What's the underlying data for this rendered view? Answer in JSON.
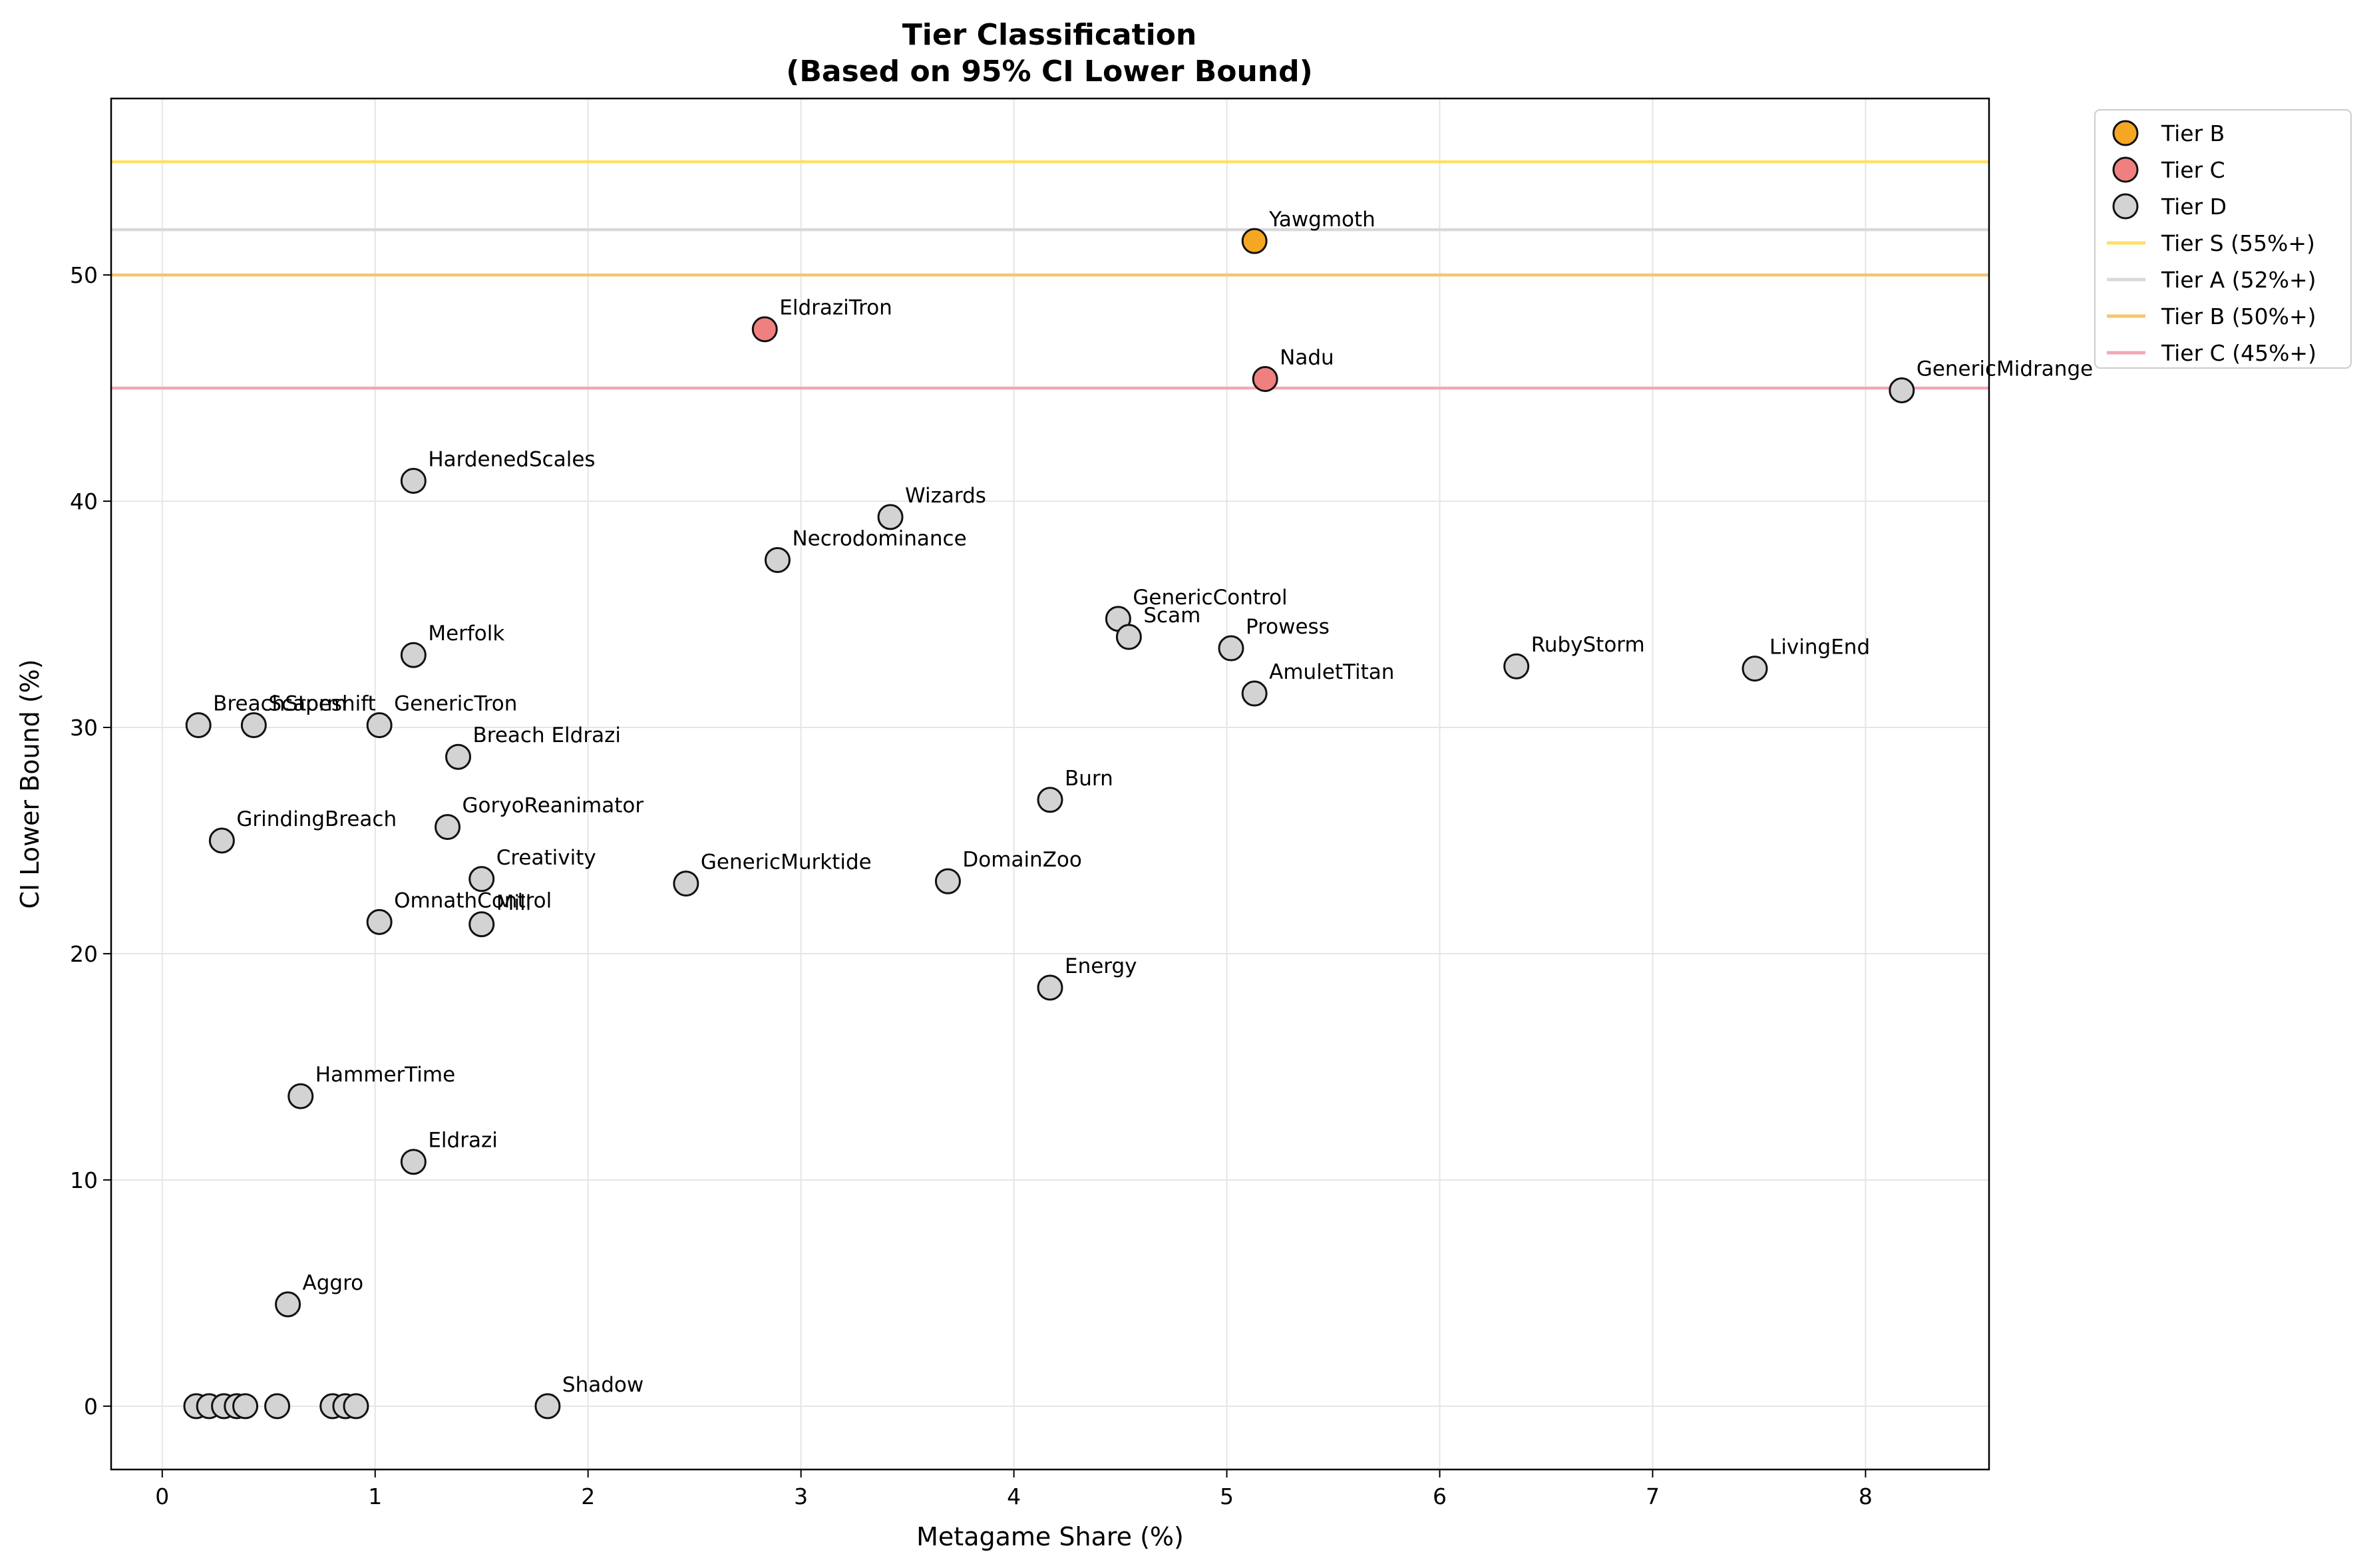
{
  "chart_data": {
    "type": "scatter",
    "title": "Tier Classification",
    "subtitle": "(Based on 95% CI Lower Bound)",
    "xlabel": "Metagame Share (%)",
    "ylabel": "CI Lower Bound (%)",
    "xlim": [
      -0.24,
      8.58
    ],
    "ylim": [
      -2.8,
      57.8
    ],
    "xticks": [
      0,
      1,
      2,
      3,
      4,
      5,
      6,
      7,
      8
    ],
    "yticks": [
      0,
      10,
      20,
      30,
      40,
      50
    ],
    "grid": true,
    "legend_position": "outside-top-right",
    "tier_colors": {
      "Tier B": "#f5a623",
      "Tier C": "#f08080",
      "Tier D": "#d3d3d3"
    },
    "reference_lines": [
      {
        "label": "Tier S (55%+)",
        "y": 55,
        "color": "#ffe066"
      },
      {
        "label": "Tier A (52%+)",
        "y": 52,
        "color": "#d9d9d9"
      },
      {
        "label": "Tier B (50%+)",
        "y": 50,
        "color": "#f7c56b"
      },
      {
        "label": "Tier C (45%+)",
        "y": 45,
        "color": "#f4a7b3"
      }
    ],
    "series": [
      {
        "name": "Tier B",
        "points": [
          {
            "label": "Yawgmoth",
            "x": 5.13,
            "y": 51.5
          }
        ]
      },
      {
        "name": "Tier C",
        "points": [
          {
            "label": "EldraziTron",
            "x": 2.83,
            "y": 47.6
          },
          {
            "label": "Nadu",
            "x": 5.18,
            "y": 45.4
          }
        ]
      },
      {
        "name": "Tier D",
        "points": [
          {
            "label": "GenericMidrange",
            "x": 8.17,
            "y": 44.9
          },
          {
            "label": "HardenedScales",
            "x": 1.18,
            "y": 40.9
          },
          {
            "label": "Wizards",
            "x": 3.42,
            "y": 39.3
          },
          {
            "label": "Necrodominance",
            "x": 2.89,
            "y": 37.4
          },
          {
            "label": "GenericControl",
            "x": 4.49,
            "y": 34.8
          },
          {
            "label": "Scam",
            "x": 4.54,
            "y": 34.0
          },
          {
            "label": "Prowess",
            "x": 5.02,
            "y": 33.5
          },
          {
            "label": "Merfolk",
            "x": 1.18,
            "y": 33.2
          },
          {
            "label": "RubyStorm",
            "x": 6.36,
            "y": 32.7
          },
          {
            "label": "LivingEnd",
            "x": 7.48,
            "y": 32.6
          },
          {
            "label": "AmuletTitan",
            "x": 5.13,
            "y": 31.5
          },
          {
            "label": "BreachStorm",
            "x": 0.17,
            "y": 30.1
          },
          {
            "label": "Scapeshift",
            "x": 0.43,
            "y": 30.1
          },
          {
            "label": "GenericTron",
            "x": 1.02,
            "y": 30.1
          },
          {
            "label": "Breach Eldrazi",
            "x": 1.39,
            "y": 28.7
          },
          {
            "label": "Burn",
            "x": 4.17,
            "y": 26.8
          },
          {
            "label": "GoryoReanimator",
            "x": 1.34,
            "y": 25.6
          },
          {
            "label": "GrindingBreach",
            "x": 0.28,
            "y": 25.0
          },
          {
            "label": "Creativity",
            "x": 1.5,
            "y": 23.3
          },
          {
            "label": "DomainZoo",
            "x": 3.69,
            "y": 23.2
          },
          {
            "label": "GenericMurktide",
            "x": 2.46,
            "y": 23.1
          },
          {
            "label": "OmnathControl",
            "x": 1.02,
            "y": 21.4
          },
          {
            "label": "Mill",
            "x": 1.5,
            "y": 21.3
          },
          {
            "label": "Energy",
            "x": 4.17,
            "y": 18.5
          },
          {
            "label": "HammerTime",
            "x": 0.65,
            "y": 13.7
          },
          {
            "label": "Eldrazi",
            "x": 1.18,
            "y": 10.8
          },
          {
            "label": "Aggro",
            "x": 0.59,
            "y": 4.5
          },
          {
            "label": "Shadow",
            "x": 1.81,
            "y": 0.0
          },
          {
            "label": "",
            "x": 0.16,
            "y": 0.0
          },
          {
            "label": "",
            "x": 0.22,
            "y": 0.0
          },
          {
            "label": "",
            "x": 0.29,
            "y": 0.0
          },
          {
            "label": "",
            "x": 0.35,
            "y": 0.0
          },
          {
            "label": "",
            "x": 0.39,
            "y": 0.0
          },
          {
            "label": "",
            "x": 0.54,
            "y": 0.0
          },
          {
            "label": "",
            "x": 0.8,
            "y": 0.0
          },
          {
            "label": "",
            "x": 0.86,
            "y": 0.0
          },
          {
            "label": "",
            "x": 0.91,
            "y": 0.0
          }
        ]
      }
    ]
  }
}
